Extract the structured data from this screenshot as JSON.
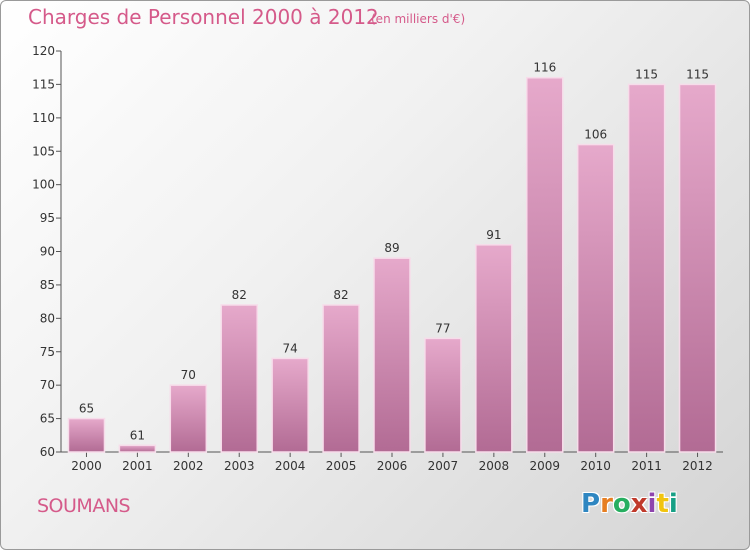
{
  "header": {
    "title": "Charges de Personnel 2000 à 2012",
    "subtitle": "(en milliers d'€)"
  },
  "footer": {
    "town": "SOUMANS",
    "logo": [
      "P",
      "r",
      "o",
      "x",
      "i",
      "t",
      "i"
    ]
  },
  "colors": {
    "accent": "#d55a8a",
    "bar_top": "#e6a9cb",
    "bar_bottom": "#b26b94",
    "bar_edge": "#f7dcea"
  },
  "chart_data": {
    "type": "bar",
    "title": "Charges de Personnel 2000 à 2012",
    "subtitle": "(en milliers d'€)",
    "categories": [
      "2000",
      "2001",
      "2002",
      "2003",
      "2004",
      "2005",
      "2006",
      "2007",
      "2008",
      "2009",
      "2010",
      "2011",
      "2012"
    ],
    "values": [
      65,
      61,
      70,
      82,
      74,
      82,
      89,
      77,
      91,
      116,
      106,
      115,
      115
    ],
    "ylim": [
      60,
      120
    ],
    "yticks": [
      60,
      65,
      70,
      75,
      80,
      85,
      90,
      95,
      100,
      105,
      110,
      115,
      120
    ],
    "grid": false,
    "legend": "none"
  }
}
